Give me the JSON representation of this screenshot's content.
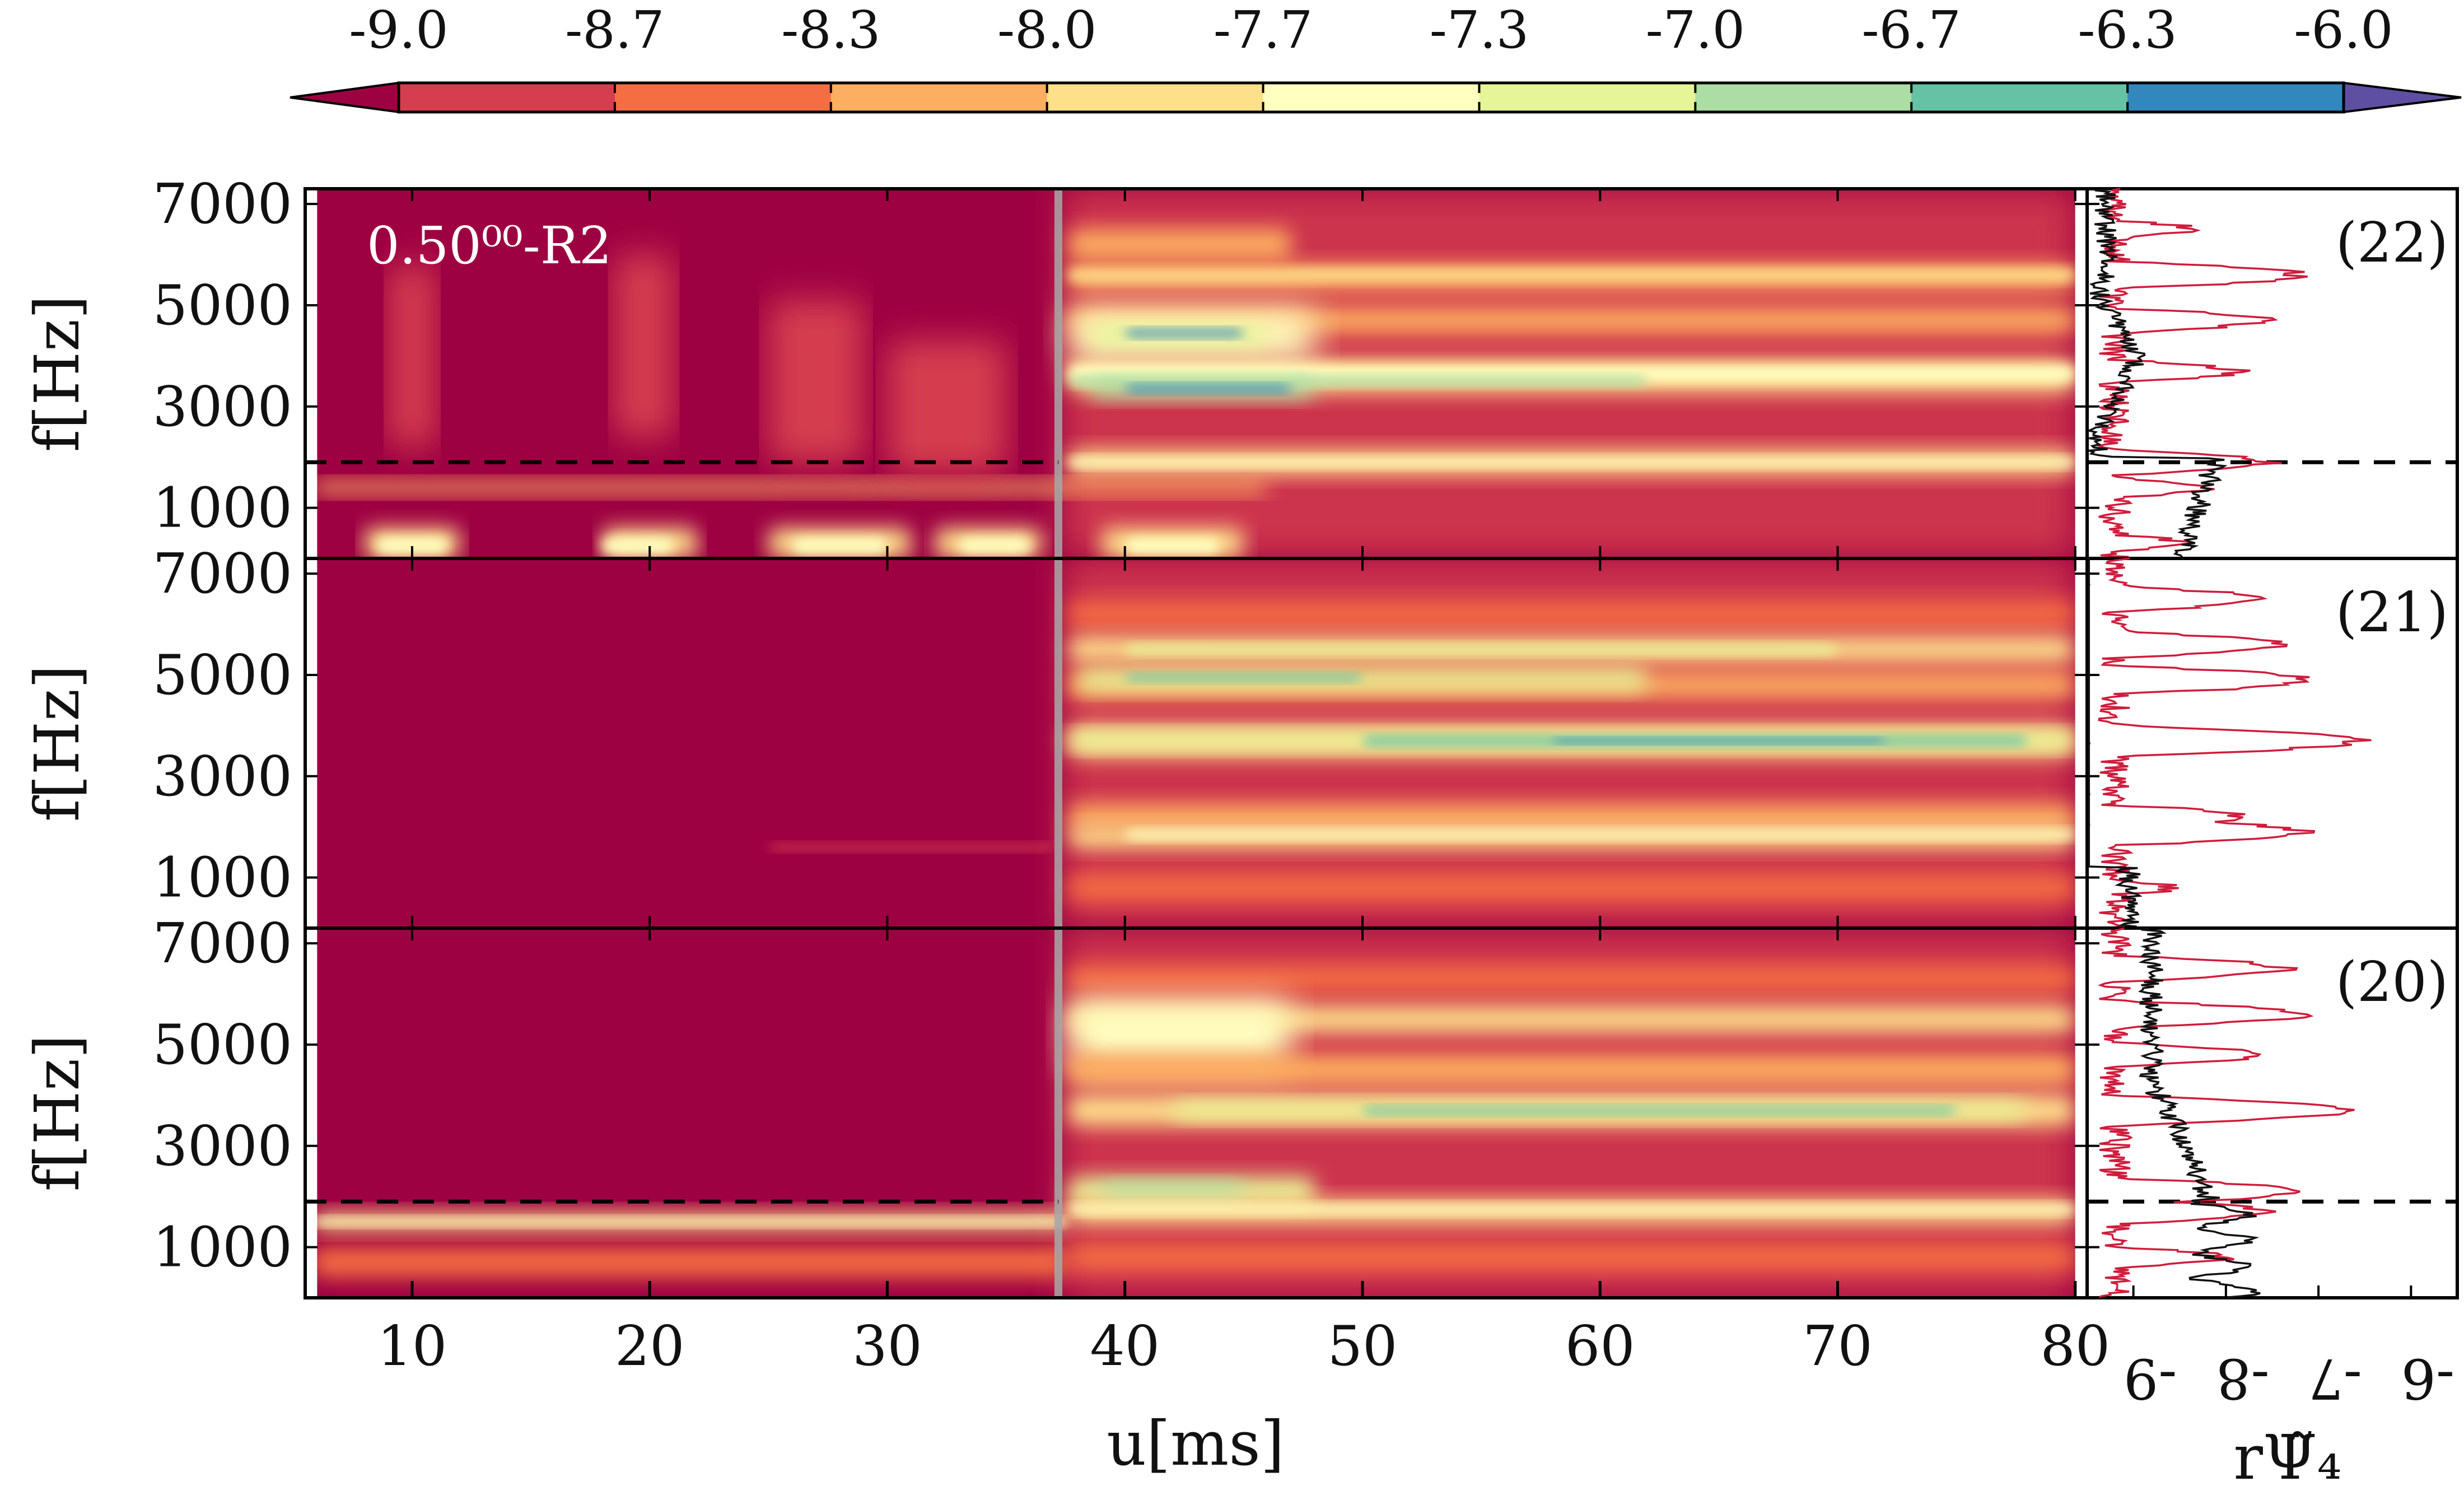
{
  "chart_data": {
    "type": "heatmap",
    "overlay_label": "0.50⁰⁰-R2",
    "colorbar": {
      "tick_labels": [
        "-9.0",
        "-8.7",
        "-8.3",
        "-8.0",
        "-7.7",
        "-7.3",
        "-7.0",
        "-6.7",
        "-6.3",
        "-6.0"
      ],
      "range": [
        -9.0,
        -6.0
      ],
      "colors": [
        "#9e0142",
        "#d53e4f",
        "#f46d43",
        "#fdae61",
        "#fee08b",
        "#ffffbf",
        "#e6f598",
        "#abdda4",
        "#66c2a5",
        "#3288bd",
        "#5e4fa2"
      ]
    },
    "x_axis": {
      "label": "u[ms]",
      "range": [
        5.5,
        80.5
      ],
      "ticks": [
        10,
        20,
        30,
        40,
        50,
        60,
        70,
        80
      ],
      "tick_labels": [
        "10",
        "20",
        "30",
        "40",
        "50",
        "60",
        "70",
        "80"
      ]
    },
    "y_axis": {
      "label": "f[Hz]",
      "range": [
        0,
        7300
      ],
      "ticks": [
        1000,
        3000,
        5000,
        7000
      ],
      "tick_labels": [
        "1000",
        "3000",
        "5000",
        "7000"
      ]
    },
    "merger_time": 37.2,
    "panels": [
      {
        "tag": "(22)",
        "dashed_freq": 1900
      },
      {
        "tag": "(21)",
        "dashed_freq": null
      },
      {
        "tag": "(20)",
        "dashed_freq": 1900
      }
    ],
    "side_axis": {
      "label": "rΨ̃₄",
      "range": [
        -9.5,
        -5.5
      ],
      "ticks": [
        -9,
        -8,
        -7,
        -6
      ],
      "tick_labels": [
        "-9",
        "-8",
        "-7",
        "-6"
      ]
    }
  }
}
